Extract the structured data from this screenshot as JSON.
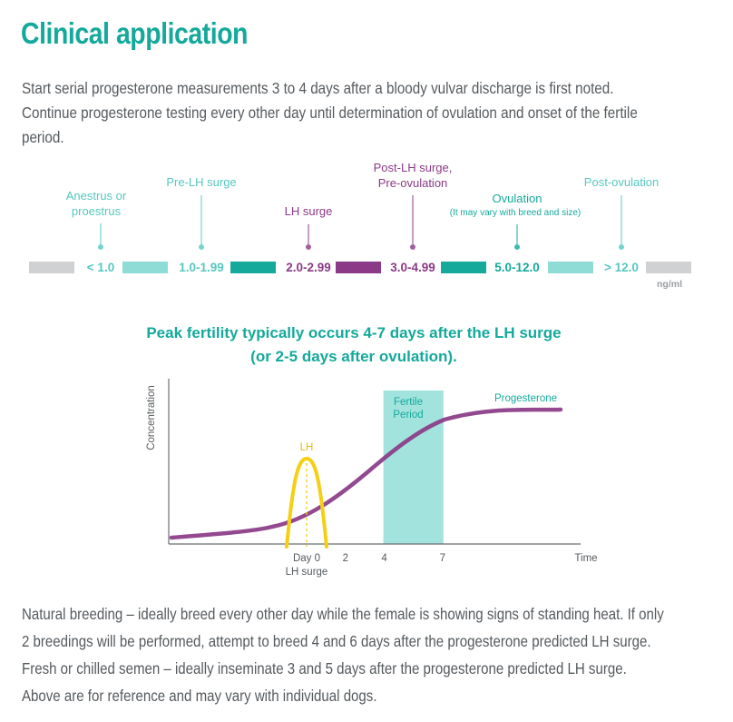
{
  "title": "Clinical application",
  "intro": [
    "Start serial progesterone measurements 3 to 4 days after a bloody vulvar discharge is first noted.",
    "Continue progesterone testing every other day until determination of ovulation and onset of the fertile",
    "period."
  ],
  "scale": {
    "unit": "ng/ml",
    "stages": [
      {
        "label": [
          "Anestrus or",
          "proestrus"
        ],
        "note": "",
        "range": "< 1.0",
        "color": "#55c8c0"
      },
      {
        "label": [
          "Pre-LH surge"
        ],
        "note": "",
        "range": "1.0-1.99",
        "color": "#55c8c0"
      },
      {
        "label": [
          "LH surge"
        ],
        "note": "",
        "range": "2.0-2.99",
        "color": "#8a3a86"
      },
      {
        "label": [
          "Post-LH surge,",
          "Pre-ovulation"
        ],
        "note": "",
        "range": "3.0-4.99",
        "color": "#8a3a86"
      },
      {
        "label": [
          "Ovulation"
        ],
        "note": "(It may vary with breed and size)",
        "range": "5.0-12.0",
        "color": "#14a99b"
      },
      {
        "label": [
          "Post-ovulation"
        ],
        "note": "",
        "range": "> 12.0",
        "color": "#55c8c0"
      }
    ],
    "bar_colors": [
      "#cfd1d2",
      "#8fdcd6",
      "#14a99b",
      "#8a3a86",
      "#14a99b",
      "#8fdcd6",
      "#cfd1d2"
    ]
  },
  "fertility": {
    "heading": [
      "Peak fertility typically occurs 4-7 days after the LH surge",
      "(or 2-5 days after ovulation)."
    ],
    "ylabel": "Concentration",
    "xlabel": "Time",
    "ticks": [
      {
        "x": 0,
        "label": "Day 0"
      },
      {
        "x": 2,
        "label": "2"
      },
      {
        "x": 4,
        "label": "4"
      },
      {
        "x": 7,
        "label": "7"
      }
    ],
    "day0_sublabel": "LH surge",
    "lh_label": "LH",
    "progesterone_label": "Progesterone",
    "fertile_label": [
      "Fertile",
      "Period"
    ],
    "fertile_window": [
      4,
      7
    ],
    "colors": {
      "progesterone": "#8a3a86",
      "lh": "#f5cf13",
      "fertile": "#a2e3dd",
      "accent": "#14a99b"
    }
  },
  "outro": [
    "Natural breeding – ideally breed every other day while the female is showing signs of standing heat. If only",
    "2 breedings will be performed, attempt to breed 4 and 6 days after the progesterone predicted LH surge.",
    "Fresh or chilled semen – ideally inseminate 3 and 5 days after the progesterone predicted LH surge.",
    "Above are for reference and may vary with individual dogs."
  ]
}
